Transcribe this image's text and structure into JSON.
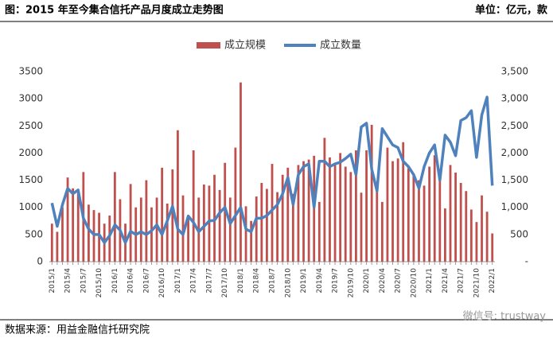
{
  "chart_data": {
    "type": "bar-line",
    "title": "图：2015 年至今集合信托产品月度成立走势图",
    "unit_note": "单位：亿元，款",
    "source": "数据来源：用益金融信托研究院",
    "watermark": "微信号: trustway",
    "categories": [
      "2015/1",
      null,
      null,
      "2015/4",
      null,
      null,
      "2015/7",
      null,
      null,
      "2015/10",
      null,
      null,
      "2016/1",
      null,
      null,
      "2016/4",
      null,
      null,
      "2016/7",
      null,
      null,
      "2016/10",
      null,
      null,
      "2017/1",
      null,
      null,
      "2017/4",
      null,
      null,
      "2017/7",
      null,
      null,
      "2017/10",
      null,
      null,
      "2018/1",
      null,
      null,
      "2018/4",
      null,
      null,
      "2018/7",
      null,
      null,
      "2018/10",
      null,
      null,
      "2019/1",
      null,
      null,
      "2019/4",
      null,
      null,
      "2019/7",
      null,
      null,
      "2019/10",
      null,
      null,
      "2020/1",
      null,
      null,
      "2020/4",
      null,
      null,
      "2020/7",
      null,
      null,
      "2020/10",
      null,
      null,
      "2021/1",
      null,
      null,
      "2021/4",
      null,
      null,
      "2021/7",
      null,
      null,
      "2021/10",
      null,
      null,
      "2022/1"
    ],
    "series": [
      {
        "name": "成立规模",
        "type": "bar",
        "color": "#c0504d",
        "values": [
          700,
          550,
          1000,
          1550,
          1350,
          1280,
          1650,
          1050,
          950,
          900,
          700,
          850,
          1650,
          1150,
          700,
          1430,
          1000,
          1180,
          1500,
          1000,
          1180,
          1730,
          1070,
          1700,
          2420,
          1220,
          850,
          2050,
          1180,
          1420,
          1400,
          1600,
          1320,
          1820,
          1180,
          2100,
          3300,
          1020,
          750,
          1200,
          1450,
          1340,
          1800,
          1280,
          1600,
          1730,
          1250,
          1780,
          1850,
          1880,
          1950,
          1100,
          2280,
          1920,
          1800,
          2000,
          1750,
          1650,
          2050,
          1270,
          2050,
          2520,
          1450,
          1100,
          2100,
          1850,
          1900,
          2200,
          1720,
          1620,
          1500,
          1400,
          1750,
          1960,
          1600,
          980,
          1780,
          1640,
          1450,
          1300,
          960,
          730,
          1220,
          920,
          520
        ]
      },
      {
        "name": "成立数量",
        "type": "line",
        "axis": "y2",
        "color": "#4f81bd",
        "values": [
          1080,
          650,
          1050,
          1350,
          1250,
          1320,
          800,
          600,
          500,
          500,
          350,
          480,
          680,
          580,
          350,
          560,
          500,
          550,
          500,
          570,
          680,
          500,
          750,
          1020,
          600,
          500,
          840,
          720,
          550,
          650,
          750,
          760,
          900,
          1000,
          700,
          850,
          1000,
          600,
          550,
          800,
          800,
          850,
          950,
          1050,
          1250,
          1550,
          1050,
          1600,
          1750,
          1800,
          1000,
          1850,
          1850,
          1750,
          1800,
          1830,
          1900,
          1980,
          1600,
          2480,
          2550,
          1700,
          1300,
          2450,
          2300,
          2150,
          2100,
          1850,
          1750,
          1600,
          1350,
          1750,
          2000,
          2150,
          1500,
          2330,
          2200,
          1950,
          2600,
          2650,
          2780,
          1920,
          2700,
          3030,
          1400
        ]
      }
    ],
    "ylim": [
      0,
      3500
    ],
    "yticks": [
      0,
      500,
      1000,
      1500,
      2000,
      2500,
      3000,
      3500
    ],
    "y2lim": [
      0,
      3500
    ],
    "y2ticks": [
      {
        "value": 0,
        "label": "-"
      },
      500,
      {
        "value": 1000,
        "label": "1,000"
      },
      {
        "value": 1500,
        "label": "1,500"
      },
      {
        "value": 2000,
        "label": "2,000"
      },
      {
        "value": 2500,
        "label": "2,500"
      },
      {
        "value": 3000,
        "label": "3,000"
      },
      {
        "value": 3500,
        "label": "3,500"
      }
    ],
    "legend": "top",
    "grid": false
  }
}
